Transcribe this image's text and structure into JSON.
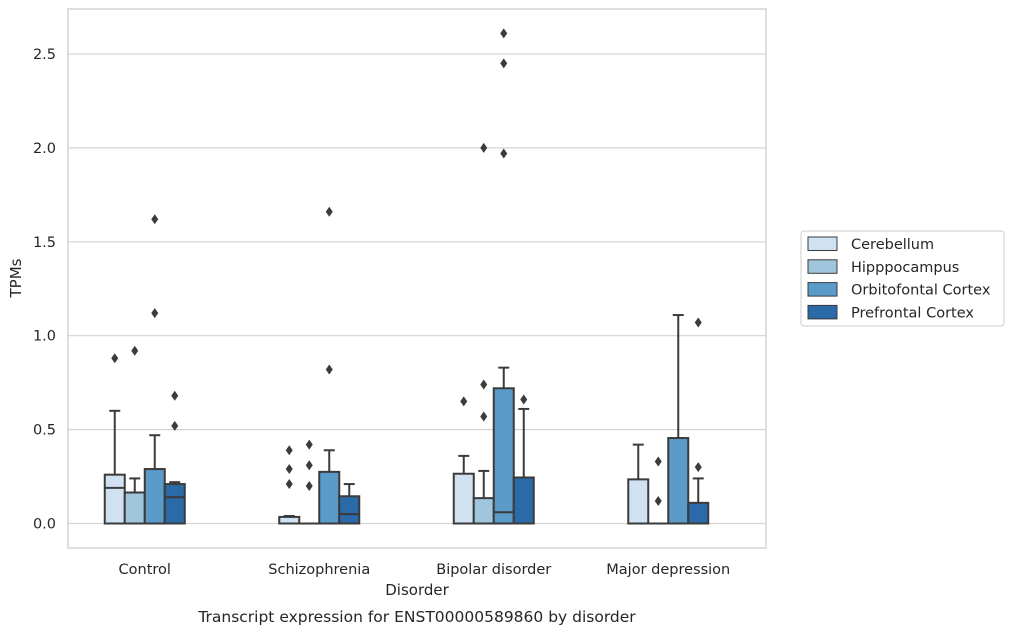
{
  "chart_data": {
    "type": "boxplot",
    "caption": "Transcript expression for ENST00000589860 by disorder",
    "xlabel": "Disorder",
    "ylabel": "TPMs",
    "ylim": [
      -0.13,
      2.75
    ],
    "yticks": [
      "0.0",
      "0.5",
      "1.0",
      "1.5",
      "2.0",
      "2.5"
    ],
    "ytick_values": [
      0,
      0.5,
      1.0,
      1.5,
      2.0,
      2.5
    ],
    "grid": true,
    "legend_placement": "outside-right",
    "categories": [
      "Control",
      "Schizophrenia",
      "Bipolar disorder",
      "Major depression"
    ],
    "series": [
      {
        "name": "Cerebellum",
        "color": "#d0e1f2",
        "boxes": [
          {
            "q1": 0,
            "median": 0.19,
            "q3": 0.26,
            "whisker_low": 0,
            "whisker_high": 0.6,
            "outliers": [
              0.88
            ]
          },
          {
            "q1": 0,
            "median": 0.0,
            "q3": 0.035,
            "whisker_low": 0,
            "whisker_high": 0.04,
            "outliers": [
              0.39,
              0.29,
              0.21
            ]
          },
          {
            "q1": 0,
            "median": 0.0,
            "q3": 0.265,
            "whisker_low": 0,
            "whisker_high": 0.36,
            "outliers": [
              0.65
            ]
          },
          {
            "q1": 0,
            "median": 0.0,
            "q3": 0.235,
            "whisker_low": 0,
            "whisker_high": 0.42,
            "outliers": []
          }
        ]
      },
      {
        "name": "Hipppocampus",
        "color": "#a0c6de",
        "boxes": [
          {
            "q1": 0,
            "median": 0.0,
            "q3": 0.165,
            "whisker_low": 0,
            "whisker_high": 0.24,
            "outliers": [
              0.92
            ]
          },
          {
            "q1": 0,
            "median": 0.0,
            "q3": 0.0,
            "whisker_low": 0,
            "whisker_high": 0.0,
            "outliers": [
              0.42,
              0.31,
              0.2
            ]
          },
          {
            "q1": 0,
            "median": 0.0,
            "q3": 0.135,
            "whisker_low": 0,
            "whisker_high": 0.28,
            "outliers": [
              0.74,
              0.57,
              2.0
            ]
          },
          {
            "q1": 0,
            "median": 0.0,
            "q3": 0.0,
            "whisker_low": 0,
            "whisker_high": 0.0,
            "outliers": [
              0.33,
              0.12
            ]
          }
        ]
      },
      {
        "name": "Orbitofontal Cortex",
        "color": "#5a9bc9",
        "boxes": [
          {
            "q1": 0,
            "median": 0.0,
            "q3": 0.29,
            "whisker_low": 0,
            "whisker_high": 0.47,
            "outliers": [
              1.62,
              1.12
            ]
          },
          {
            "q1": 0,
            "median": 0.0,
            "q3": 0.275,
            "whisker_low": 0,
            "whisker_high": 0.39,
            "outliers": [
              1.66,
              0.82
            ]
          },
          {
            "q1": 0,
            "median": 0.06,
            "q3": 0.72,
            "whisker_low": 0,
            "whisker_high": 0.83,
            "outliers": [
              2.61,
              2.45,
              1.97
            ]
          },
          {
            "q1": 0,
            "median": 0.0,
            "q3": 0.455,
            "whisker_low": 0,
            "whisker_high": 1.11,
            "outliers": []
          }
        ]
      },
      {
        "name": "Prefrontal Cortex",
        "color": "#2a6aa8",
        "boxes": [
          {
            "q1": 0,
            "median": 0.14,
            "q3": 0.21,
            "whisker_low": 0,
            "whisker_high": 0.22,
            "outliers": [
              0.68,
              0.52
            ]
          },
          {
            "q1": 0,
            "median": 0.05,
            "q3": 0.145,
            "whisker_low": 0,
            "whisker_high": 0.21,
            "outliers": []
          },
          {
            "q1": 0,
            "median": 0.0,
            "q3": 0.245,
            "whisker_low": 0,
            "whisker_high": 0.61,
            "outliers": [
              0.66
            ]
          },
          {
            "q1": 0,
            "median": 0.0,
            "q3": 0.11,
            "whisker_low": 0,
            "whisker_high": 0.24,
            "outliers": [
              1.07,
              0.3
            ]
          }
        ]
      }
    ]
  }
}
